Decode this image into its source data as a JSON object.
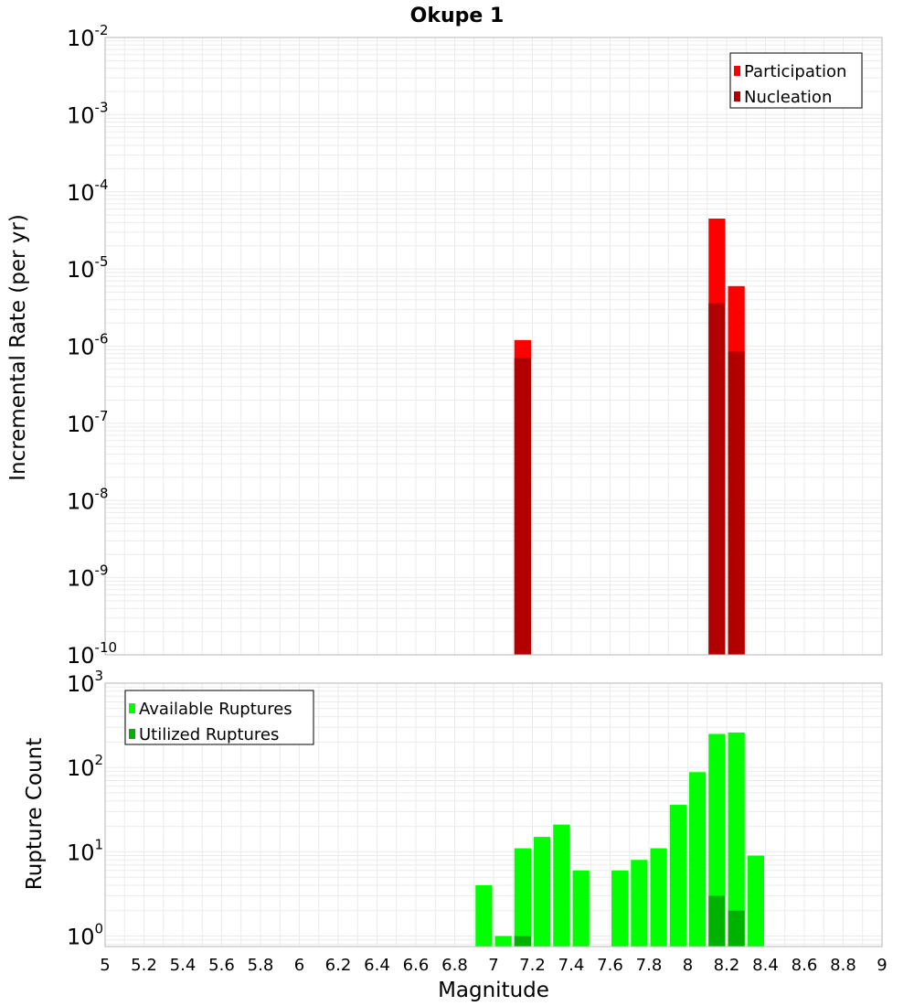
{
  "title": "Okupe 1",
  "colors": {
    "participation": "#ff0000",
    "nucleation": "#b20000",
    "available": "#00ff00",
    "utilized": "#00b200",
    "grid": "#ebebeb",
    "frame": "#b5b5b5"
  },
  "chart_data": [
    {
      "type": "bar",
      "title": "Okupe 1",
      "xlabel": "Magnitude",
      "ylabel": "Incremental Rate (per yr)",
      "xlim": [
        5,
        9
      ],
      "ylim": [
        1e-10,
        0.01
      ],
      "yscale": "log",
      "grid": true,
      "legend_position": "top-right",
      "series": [
        {
          "name": "Participation",
          "x": [
            7.15,
            8.15,
            8.25
          ],
          "values": [
            1.2e-06,
            4.5e-05,
            6e-06
          ]
        },
        {
          "name": "Nucleation",
          "x": [
            7.15,
            8.15,
            8.25
          ],
          "values": [
            7e-07,
            3.6e-06,
            8.5e-07
          ]
        }
      ]
    },
    {
      "type": "bar",
      "xlabel": "Magnitude",
      "ylabel": "Rupture Count",
      "xlim": [
        5,
        9
      ],
      "ylim": [
        0.75,
        1000
      ],
      "yscale": "log",
      "grid": true,
      "legend_position": "top-left",
      "series": [
        {
          "name": "Available Ruptures",
          "x": [
            6.95,
            7.05,
            7.15,
            7.25,
            7.35,
            7.45,
            7.65,
            7.75,
            7.85,
            7.95,
            8.05,
            8.15,
            8.25,
            8.35
          ],
          "values": [
            4,
            1,
            11,
            15,
            21,
            6,
            6,
            8,
            11,
            36,
            88,
            250,
            260,
            9
          ]
        },
        {
          "name": "Utilized Ruptures",
          "x": [
            7.15,
            8.15,
            8.25
          ],
          "values": [
            1,
            3,
            2
          ]
        }
      ]
    }
  ],
  "x_ticks": [
    "5",
    "5.2",
    "5.4",
    "5.6",
    "5.8",
    "6",
    "6.2",
    "6.4",
    "6.6",
    "6.8",
    "7",
    "7.2",
    "7.4",
    "7.6",
    "7.8",
    "8",
    "8.2",
    "8.4",
    "8.6",
    "8.8",
    "9"
  ],
  "top_y_ticks": [
    {
      "base": "10",
      "exp": "-2"
    },
    {
      "base": "10",
      "exp": "-3"
    },
    {
      "base": "10",
      "exp": "-4"
    },
    {
      "base": "10",
      "exp": "-5"
    },
    {
      "base": "10",
      "exp": "-6"
    },
    {
      "base": "10",
      "exp": "-7"
    },
    {
      "base": "10",
      "exp": "-8"
    },
    {
      "base": "10",
      "exp": "-9"
    },
    {
      "base": "10",
      "exp": "-10"
    }
  ],
  "bottom_y_ticks": [
    {
      "base": "10",
      "exp": "3"
    },
    {
      "base": "10",
      "exp": "2"
    },
    {
      "base": "10",
      "exp": "1"
    },
    {
      "base": "10",
      "exp": "0"
    }
  ]
}
